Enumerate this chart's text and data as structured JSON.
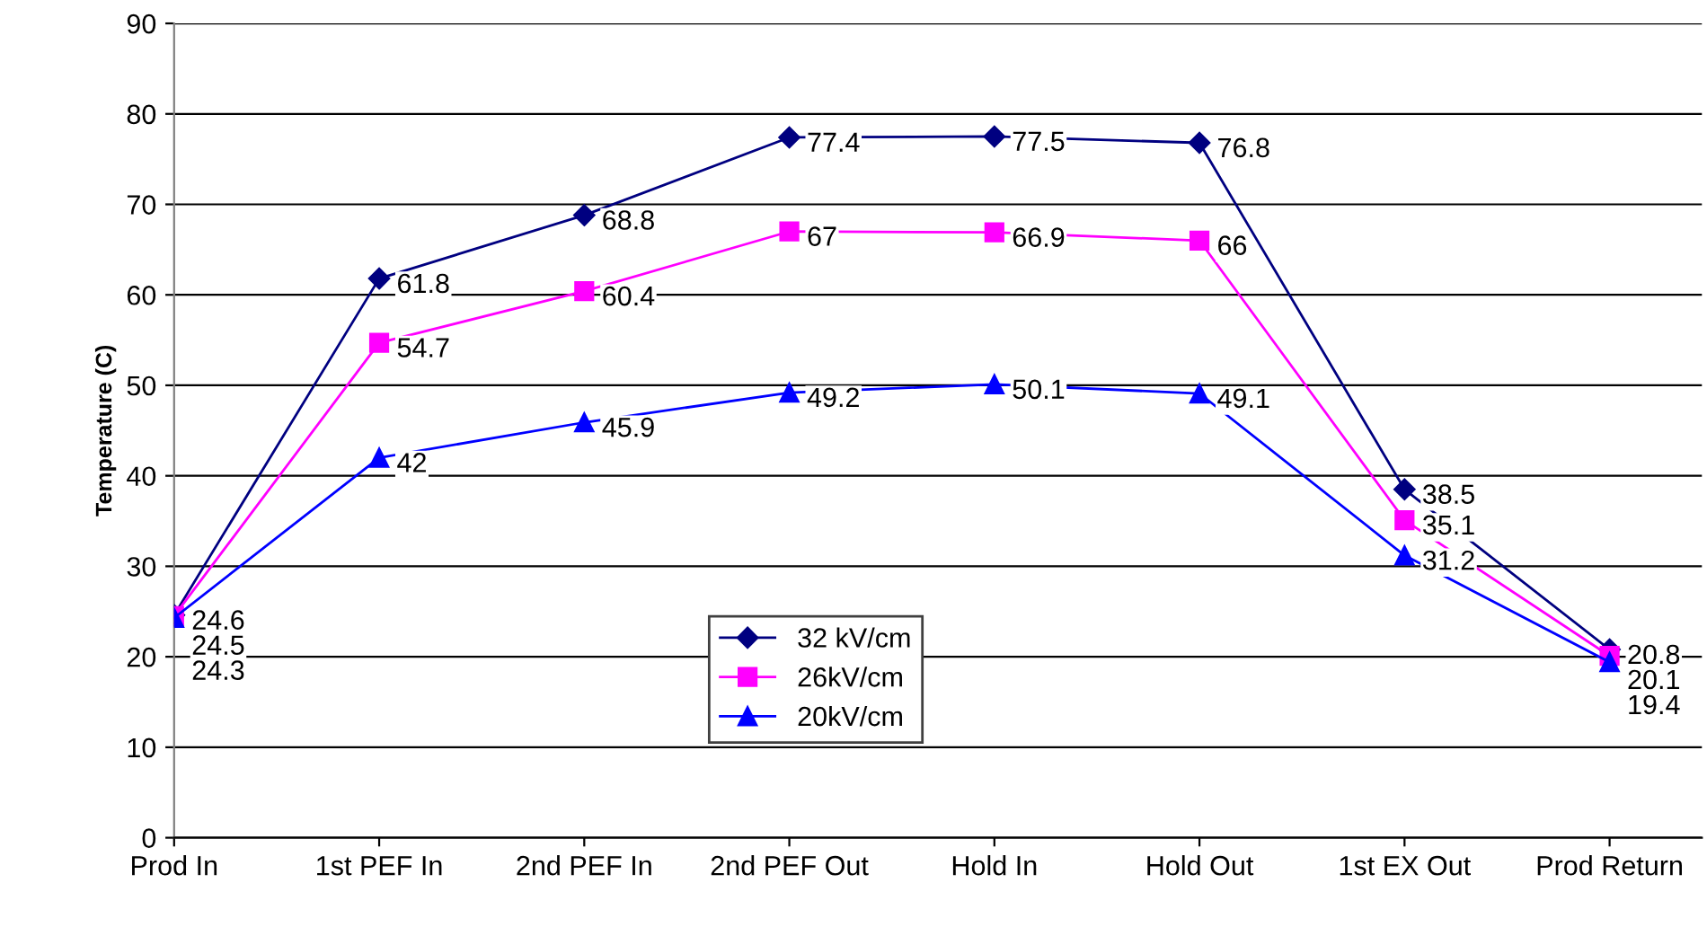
{
  "chart_data": {
    "type": "line",
    "ylabel": "Temperature (C)",
    "categories": [
      "Prod In",
      "1st PEF In",
      "2nd PEF In",
      "2nd PEF Out",
      "Hold In",
      "Hold Out",
      "1st EX Out",
      "Prod Return"
    ],
    "series": [
      {
        "name": "32 kV/cm",
        "color": "#000080",
        "marker": "diamond",
        "values": [
          24.6,
          61.8,
          68.8,
          77.4,
          77.5,
          76.8,
          38.5,
          20.8
        ]
      },
      {
        "name": "26kV/cm",
        "color": "#ff00ff",
        "marker": "square",
        "values": [
          24.5,
          54.7,
          60.4,
          67,
          66.9,
          66,
          35.1,
          20.1
        ]
      },
      {
        "name": "20kV/cm",
        "color": "#0000ff",
        "marker": "triangle",
        "values": [
          24.3,
          42,
          45.9,
          49.2,
          50.1,
          49.1,
          31.2,
          19.4
        ]
      }
    ],
    "ylim": [
      0,
      90
    ],
    "yticks": [
      0,
      10,
      20,
      30,
      40,
      50,
      60,
      70,
      80,
      90
    ],
    "grid": "y",
    "legend": "bottom",
    "data_labels": true,
    "line_style": "solid"
  }
}
